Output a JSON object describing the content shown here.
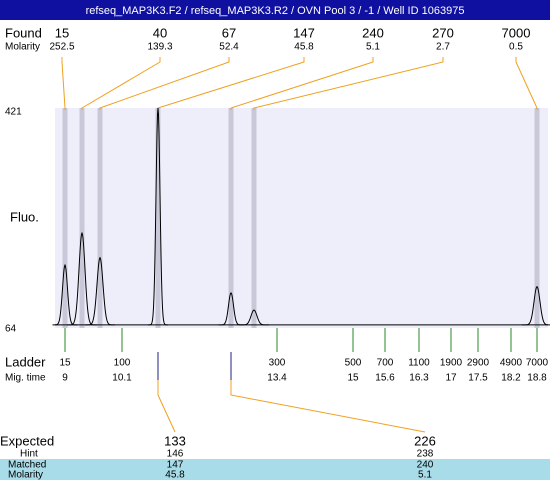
{
  "title": "refseq_MAP3K3.F2 / refseq_MAP3K3.R2 / OVN Pool 3 / -1 / Well ID 1063975",
  "labels": {
    "found": "Found",
    "molarity": "Molarity",
    "fluo": "Fluo.",
    "ladder": "Ladder",
    "mig_time": "Mig. time",
    "expected": "Expected",
    "hint": "Hint",
    "matched": "Matched",
    "molarity2": "Molarity"
  },
  "ylim": [
    64,
    421
  ],
  "yticks": [
    421,
    64
  ],
  "baseline": 69,
  "peaks": [
    {
      "size": "15",
      "molarity": "252.5",
      "fluo": 166
    },
    {
      "size": "40",
      "molarity": "139.3",
      "fluo": 218
    },
    {
      "size": "67",
      "molarity": "52.4",
      "fluo": 178
    },
    {
      "size": "147",
      "molarity": "45.8",
      "fluo": 421
    },
    {
      "size": "240",
      "molarity": "5.1",
      "fluo": 121
    },
    {
      "size": "270",
      "molarity": "2.7",
      "fluo": 93
    },
    {
      "size": "7000",
      "molarity": "0.5",
      "fluo": 131
    }
  ],
  "ladder": [
    {
      "size": "15",
      "mig": "9"
    },
    {
      "size": "100",
      "mig": "10.1"
    },
    {
      "size": "300",
      "mig": "13.4"
    },
    {
      "size": "500",
      "mig": "15"
    },
    {
      "size": "700",
      "mig": "15.6"
    },
    {
      "size": "1100",
      "mig": "16.3"
    },
    {
      "size": "1900",
      "mig": "17"
    },
    {
      "size": "2900",
      "mig": "17.5"
    },
    {
      "size": "4900",
      "mig": "18.2"
    },
    {
      "size": "7000",
      "mig": "18.8"
    }
  ],
  "expected": [
    {
      "expected": "133",
      "hint": "146",
      "matched": "147",
      "molarity": "45.8"
    },
    {
      "expected": "226",
      "hint": "238",
      "matched": "240",
      "molarity": "5.1"
    }
  ]
}
